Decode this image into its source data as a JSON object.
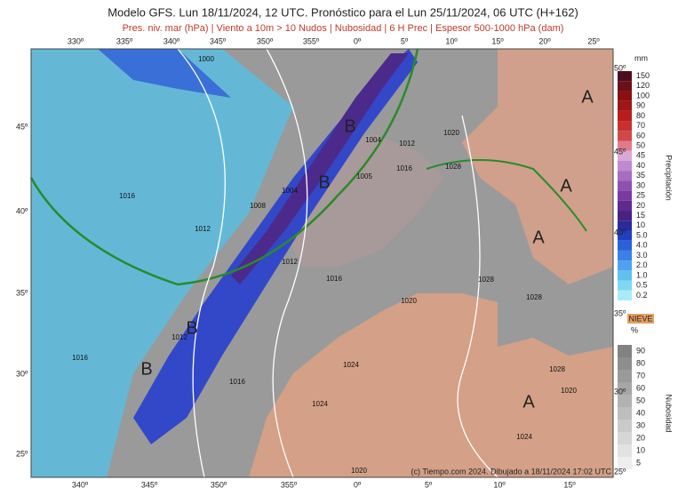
{
  "header": {
    "title": "Modelo GFS. Lun 18/11/2024, 12 UTC. Pronóstico para el Lun 25/11/2024, 06 UTC (H+162)",
    "subtitle": "Pres. niv. mar (hPa) | Viento a 10m > 10 Nudos | Nubosidad | 6 H Prec | Espesor 500-1000 hPa (dam)"
  },
  "map": {
    "top_lon": [
      "330º",
      "335º",
      "340º",
      "345º",
      "350º",
      "355º",
      "0º",
      "5º",
      "10º",
      "15º",
      "20º",
      "25º"
    ],
    "bottom_lon": [
      "340º",
      "345º",
      "350º",
      "355º",
      "0º",
      "5º",
      "10º",
      "15º"
    ],
    "left_lat": [
      "45º",
      "40º",
      "35º",
      "30º",
      "25º"
    ],
    "right_lat": [
      "50º",
      "45º",
      "40º",
      "35º",
      "30º",
      "25º"
    ],
    "isobar_labels": [
      "1000",
      "1004",
      "1012",
      "1016",
      "1020",
      "1028",
      "1008",
      "1004",
      "1016",
      "1012",
      "1012",
      "1016",
      "1020",
      "1024",
      "1024",
      "1028",
      "1028",
      "1028",
      "1016",
      "1016",
      "1012",
      "1020",
      "1024",
      "1005",
      "1020"
    ],
    "pressure_centers": [
      "A",
      "A",
      "A",
      "A",
      "B",
      "B",
      "B",
      "B"
    ],
    "footer": "(c) Tiempo.com 2024. Dibujado a 18/11/2024 17:02 UTC"
  },
  "precip_scale": {
    "unit": "mm",
    "title": "Precipitación",
    "levels": [
      "150",
      "120",
      "100",
      "90",
      "80",
      "70",
      "60",
      "50",
      "45",
      "40",
      "35",
      "30",
      "25",
      "20",
      "15",
      "10",
      "5.0",
      "4.0",
      "3.0",
      "2.0",
      "1.0",
      "0.5",
      "0.2"
    ]
  },
  "snow_label": "NIEVE",
  "cloud_scale": {
    "unit": "%",
    "title": "Nubosidad",
    "levels": [
      "90",
      "80",
      "70",
      "60",
      "50",
      "40",
      "30",
      "20",
      "10",
      "5"
    ]
  }
}
